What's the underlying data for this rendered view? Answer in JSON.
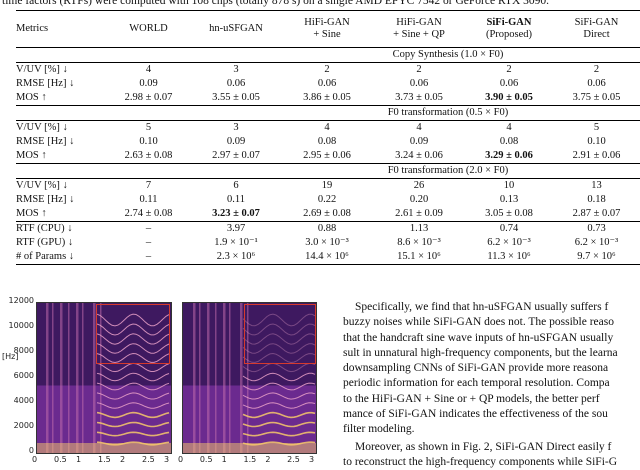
{
  "caption_top": "time factors (RTFs) were computed with 108 cnps (totally 878 s) on a single AMD EPYC 7542 or GeForce RTX 3090.",
  "table": {
    "headers": [
      {
        "line1": "Metrics",
        "line2": ""
      },
      {
        "line1": "WORLD",
        "line2": ""
      },
      {
        "line1": "hn-uSFGAN",
        "line2": ""
      },
      {
        "line1": "HiFi-GAN",
        "line2": "+ Sine"
      },
      {
        "line1": "HiFi-GAN",
        "line2": "+ Sine + QP"
      },
      {
        "line1": "SiFi-GAN",
        "line2": "(Proposed)"
      },
      {
        "line1": "SiFi-GAN",
        "line2": "Direct"
      }
    ],
    "sections": [
      {
        "title": "Copy Synthesis   (1.0 × F0)",
        "rows": [
          {
            "metric": "V/UV [%] ↓",
            "values": [
              "4",
              "3",
              "2",
              "2",
              "2",
              "2"
            ],
            "best": -1
          },
          {
            "metric": "RMSE [Hz] ↓",
            "values": [
              "0.09",
              "0.06",
              "0.06",
              "0.06",
              "0.06",
              "0.06"
            ],
            "best": -1
          },
          {
            "metric": "MOS ↑",
            "values": [
              "2.98 ± 0.07",
              "3.55 ± 0.05",
              "3.86 ± 0.05",
              "3.73 ± 0.05",
              "3.90 ± 0.05",
              "3.75 ± 0.05"
            ],
            "best": 4
          }
        ]
      },
      {
        "title": "F0 transformation   (0.5 × F0)",
        "rows": [
          {
            "metric": "V/UV [%] ↓",
            "values": [
              "5",
              "3",
              "4",
              "4",
              "4",
              "5"
            ],
            "best": -1
          },
          {
            "metric": "RMSE [Hz] ↓",
            "values": [
              "0.10",
              "0.09",
              "0.08",
              "0.09",
              "0.08",
              "0.10"
            ],
            "best": -1
          },
          {
            "metric": "MOS ↑",
            "values": [
              "2.63 ± 0.08",
              "2.97 ± 0.07",
              "2.95 ± 0.06",
              "3.24 ± 0.06",
              "3.29 ± 0.06",
              "2.91 ± 0.06"
            ],
            "best": 4
          }
        ]
      },
      {
        "title": "F0 transformation   (2.0 × F0)",
        "rows": [
          {
            "metric": "V/UV [%] ↓",
            "values": [
              "7",
              "6",
              "19",
              "26",
              "10",
              "13"
            ],
            "best": -1
          },
          {
            "metric": "RMSE [Hz] ↓",
            "values": [
              "0.11",
              "0.11",
              "0.22",
              "0.20",
              "0.13",
              "0.18"
            ],
            "best": -1
          },
          {
            "metric": "MOS ↑",
            "values": [
              "2.74 ± 0.08",
              "3.23 ± 0.07",
              "2.69 ± 0.08",
              "2.61 ± 0.09",
              "3.05 ± 0.08",
              "2.87 ± 0.07"
            ],
            "best": 1
          }
        ]
      }
    ],
    "extra_rows": [
      {
        "metric": "RTF (CPU) ↓",
        "values": [
          "–",
          "3.97",
          "0.88",
          "1.13",
          "0.74",
          "0.73"
        ]
      },
      {
        "metric": "RTF (GPU) ↓",
        "values": [
          "–",
          "1.9 × 10⁻¹",
          "3.0 × 10⁻³",
          "8.6 × 10⁻³",
          "6.2 × 10⁻³",
          "6.2 × 10⁻³"
        ]
      },
      {
        "metric": "# of Params ↓",
        "values": [
          "–",
          "2.3 × 10⁶",
          "14.4 × 10⁶",
          "15.1 × 10⁶",
          "11.3 × 10⁶",
          "9.7 × 10⁶"
        ]
      }
    ]
  },
  "figure": {
    "y_unit": "[Hz]",
    "y_ticks": [
      "12000",
      "10000",
      "8000",
      "6000",
      "4000",
      "2000",
      "0"
    ],
    "x_ticks": [
      "0",
      "0.5",
      "1",
      "1.5",
      "2",
      "2.5",
      "3"
    ],
    "colors": {
      "highlight": "#d63a2d",
      "spec_dark": "#1a0b3a",
      "spec_mid": "#6b2a8f",
      "spec_bright": "#f7c96a"
    }
  },
  "text": {
    "para1": [
      "Specifically, we find that hn-uSFGAN usually suffers f",
      "buzzy noises while SiFi-GAN does not. The possible reaso",
      "that the handcraft sine wave inputs of hn-uSFGAN usually",
      "sult in unnatural high-frequency components, but the learna",
      "downsampling CNNs of SiFi-GAN provide more reasona",
      "periodic information for each temporal resolution. Compa",
      "to the HiFi-GAN + Sine or + QP models, the better perf",
      "mance of SiFi-GAN indicates the effectiveness of the sou",
      "filter modeling."
    ],
    "para2": [
      "Moreover, as shown in Fig. 2, SiFi-GAN Direct easily f",
      "to reconstruct the high-frequency components while SiFi-G"
    ]
  }
}
